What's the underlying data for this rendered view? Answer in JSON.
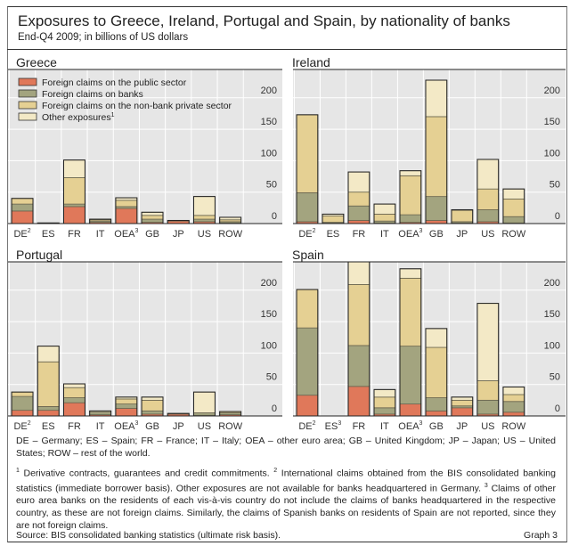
{
  "header": {
    "title": "Exposures to Greece, Ireland, Portugal and Spain, by nationality of banks",
    "subtitle": "End-Q4 2009; in billions of US dollars"
  },
  "colors": {
    "public_sector": "#e0785a",
    "banks": "#a3a47f",
    "nonbank_private": "#e5d093",
    "other": "#f3e9c6",
    "plot_bg": "#e6e6e6",
    "grid": "#ffffff"
  },
  "chart_data": [
    {
      "type": "bar",
      "stacked": true,
      "title": "Greece",
      "categories": [
        "DE",
        "ES",
        "FR",
        "IT",
        "OEA",
        "GB",
        "JP",
        "US",
        "ROW"
      ],
      "category_superscripts": [
        "2",
        "",
        "",
        "",
        "3",
        "",
        "",
        "",
        ""
      ],
      "series": [
        {
          "name": "Foreign claims on the public sector",
          "values": [
            20,
            1,
            27,
            2,
            24,
            2,
            4,
            3,
            1
          ]
        },
        {
          "name": "Foreign claims on banks",
          "values": [
            11,
            0,
            4,
            2,
            3,
            5,
            1,
            4,
            2
          ]
        },
        {
          "name": "Foreign claims on the non-bank private sector",
          "values": [
            9,
            0,
            42,
            2,
            10,
            6,
            0,
            6,
            3
          ]
        },
        {
          "name": "Other exposures",
          "values": [
            0,
            0,
            28,
            1,
            4,
            5,
            0,
            30,
            4
          ]
        }
      ],
      "yticks": [
        0,
        50,
        100,
        150,
        200
      ],
      "ylim": [
        0,
        245
      ],
      "legend": "top-left",
      "grid": true
    },
    {
      "type": "bar",
      "stacked": true,
      "title": "Ireland",
      "categories": [
        "DE",
        "ES",
        "FR",
        "IT",
        "OEA",
        "GB",
        "JP",
        "US",
        "ROW"
      ],
      "category_superscripts": [
        "2",
        "",
        "",
        "",
        "3",
        "",
        "",
        "",
        ""
      ],
      "series": [
        {
          "name": "Foreign claims on the public sector",
          "values": [
            3,
            1,
            5,
            1,
            2,
            5,
            1,
            3,
            1
          ]
        },
        {
          "name": "Foreign claims on banks",
          "values": [
            46,
            1,
            23,
            3,
            12,
            38,
            2,
            19,
            10
          ]
        },
        {
          "name": "Foreign claims on the non-bank private sector",
          "values": [
            124,
            10,
            22,
            11,
            62,
            127,
            18,
            33,
            28
          ]
        },
        {
          "name": "Other exposures",
          "values": [
            0,
            3,
            32,
            16,
            8,
            58,
            1,
            47,
            16
          ]
        }
      ],
      "yticks": [
        0,
        50,
        100,
        150,
        200
      ],
      "ylim": [
        0,
        245
      ],
      "grid": true
    },
    {
      "type": "bar",
      "stacked": true,
      "title": "Portugal",
      "categories": [
        "DE",
        "ES",
        "FR",
        "IT",
        "OEA",
        "GB",
        "JP",
        "US",
        "ROW"
      ],
      "category_superscripts": [
        "2",
        "",
        "",
        "",
        "3",
        "",
        "",
        "",
        ""
      ],
      "series": [
        {
          "name": "Foreign claims on the public sector",
          "values": [
            9,
            9,
            21,
            2,
            12,
            3,
            3,
            1,
            2
          ]
        },
        {
          "name": "Foreign claims on banks",
          "values": [
            22,
            6,
            8,
            4,
            7,
            5,
            1,
            4,
            3
          ]
        },
        {
          "name": "Foreign claims on the non-bank private sector",
          "values": [
            7,
            71,
            16,
            0,
            8,
            17,
            0,
            0,
            2
          ]
        },
        {
          "name": "Other exposures",
          "values": [
            0,
            25,
            6,
            2,
            3,
            5,
            0,
            33,
            0
          ]
        }
      ],
      "yticks": [
        0,
        50,
        100,
        150,
        200
      ],
      "ylim": [
        0,
        245
      ],
      "grid": true
    },
    {
      "type": "bar",
      "stacked": true,
      "title": "Spain",
      "categories": [
        "DE",
        "ES",
        "FR",
        "IT",
        "OEA",
        "GB",
        "JP",
        "US",
        "ROW"
      ],
      "category_superscripts": [
        "2",
        "3",
        "",
        "",
        "3",
        "",
        "",
        "",
        ""
      ],
      "series": [
        {
          "name": "Foreign claims on the public sector",
          "values": [
            33,
            0,
            47,
            3,
            19,
            8,
            13,
            3,
            6
          ]
        },
        {
          "name": "Foreign claims on banks",
          "values": [
            107,
            0,
            65,
            10,
            92,
            21,
            3,
            22,
            17
          ]
        },
        {
          "name": "Foreign claims on the non-bank private sector",
          "values": [
            61,
            0,
            97,
            17,
            108,
            80,
            9,
            31,
            11
          ]
        },
        {
          "name": "Other exposures",
          "values": [
            0,
            0,
            36,
            12,
            15,
            30,
            5,
            123,
            12
          ]
        }
      ],
      "yticks": [
        0,
        50,
        100,
        150,
        200
      ],
      "ylim": [
        0,
        245
      ],
      "grid": true
    }
  ],
  "legend": {
    "items": [
      {
        "label": "Foreign claims on the public sector",
        "sup": ""
      },
      {
        "label": "Foreign claims on banks",
        "sup": ""
      },
      {
        "label": "Foreign claims on the non-bank private sector",
        "sup": ""
      },
      {
        "label": "Other exposures",
        "sup": "1"
      }
    ]
  },
  "notes": {
    "abbreviations": "DE – Germany; ES – Spain; FR – France; IT – Italy; OEA – other euro area; GB – United Kingdom; JP – Japan; US – United States; ROW – rest of the world.",
    "fn1_mark": "1",
    "fn1": " Derivative contracts, guarantees and credit commitments.  ",
    "fn2_mark": "2",
    "fn2": " International claims obtained from the BIS consolidated banking statistics (immediate borrower basis). Other exposures are not available for banks headquartered in Germany.  ",
    "fn3_mark": "3",
    "fn3": " Claims of other euro area banks on the residents of each vis-à-vis country do not include the claims of banks headquartered in the respective country, as these are not foreign claims. Similarly, the claims of Spanish banks on residents of Spain are not reported, since they are not foreign claims."
  },
  "footer": {
    "source": "Source:  BIS consolidated banking statistics (ultimate risk basis).",
    "graph_label": "Graph 3"
  }
}
